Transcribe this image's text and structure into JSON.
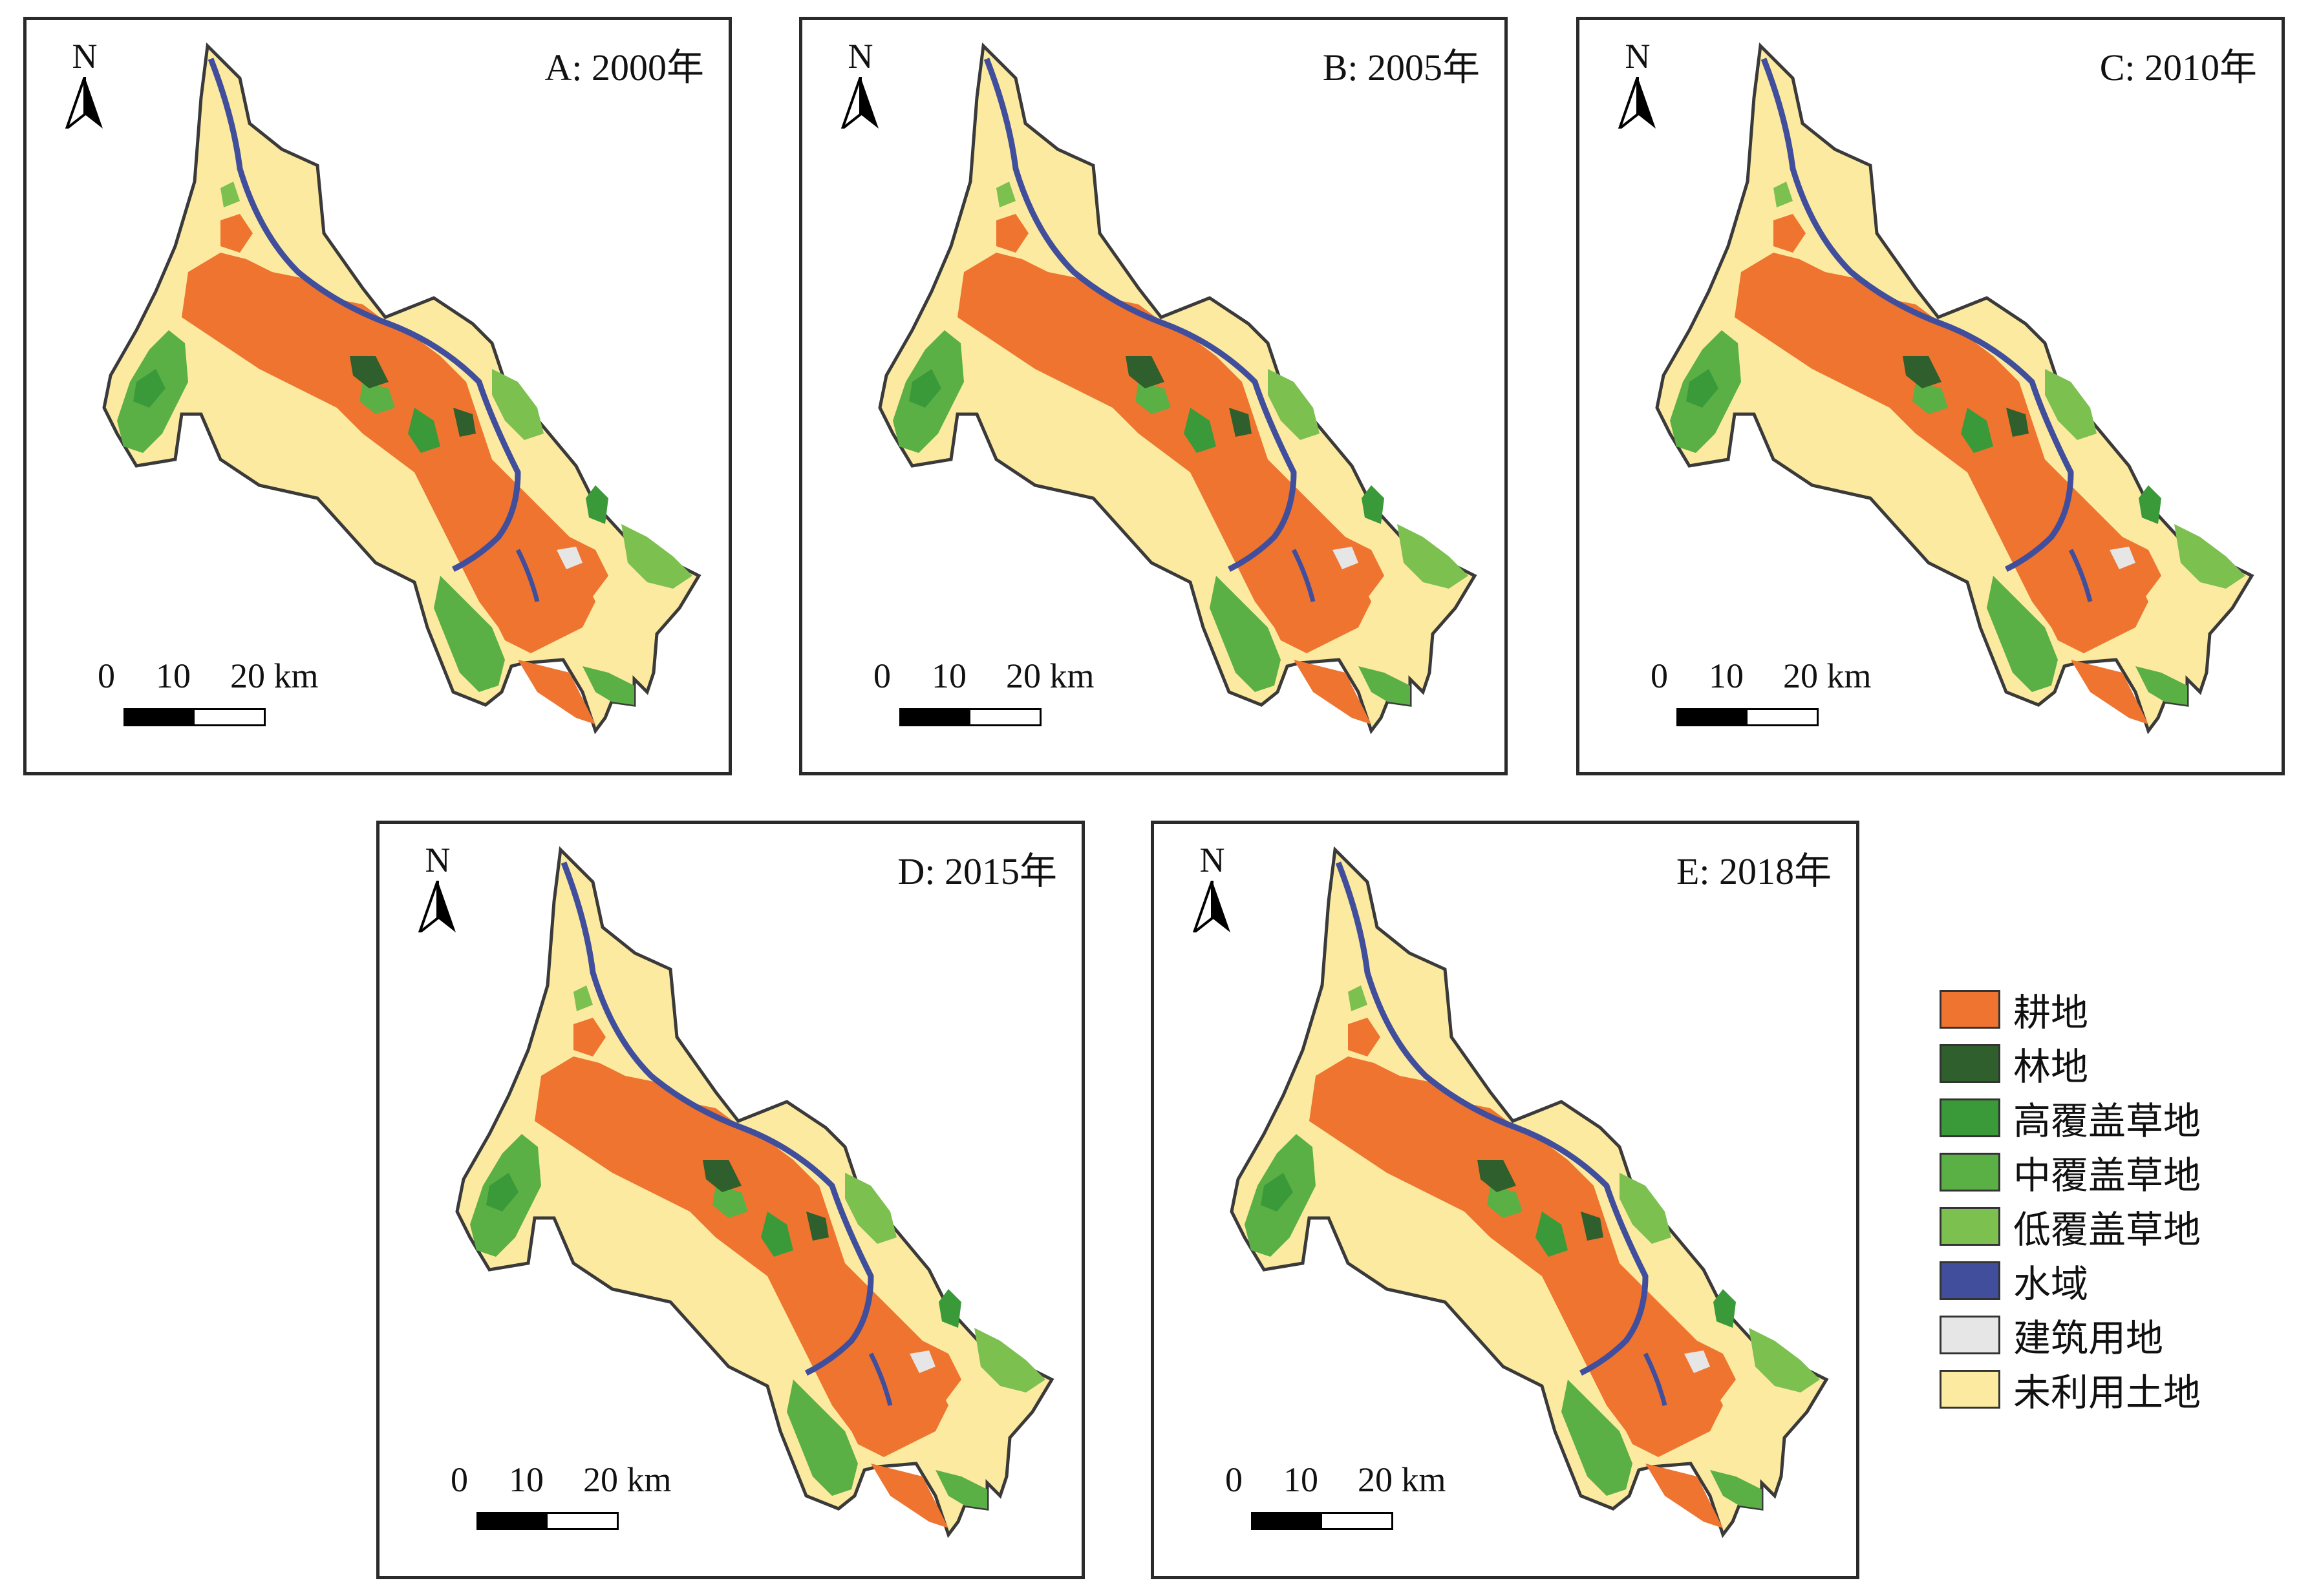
{
  "panels": [
    {
      "id": "A",
      "title": "A: 2000年"
    },
    {
      "id": "B",
      "title": "B: 2005年"
    },
    {
      "id": "C",
      "title": "C: 2010年"
    },
    {
      "id": "D",
      "title": "D: 2015年"
    },
    {
      "id": "E",
      "title": "E: 2018年"
    }
  ],
  "north_label": "N",
  "scale": {
    "label0": "0",
    "label1": "10",
    "label2": "20 km"
  },
  "legend": [
    {
      "label": "耕地",
      "color": "#ee7430"
    },
    {
      "label": "林地",
      "color": "#2f5f2c"
    },
    {
      "label": "高覆盖草地",
      "color": "#3a9a3a"
    },
    {
      "label": "中覆盖草地",
      "color": "#5ab044"
    },
    {
      "label": "低覆盖草地",
      "color": "#7cc050"
    },
    {
      "label": "水域",
      "color": "#414e9c"
    },
    {
      "label": "建筑用地",
      "color": "#e6e6e6"
    },
    {
      "label": "未利用土地",
      "color": "#fbeaa0"
    }
  ]
}
